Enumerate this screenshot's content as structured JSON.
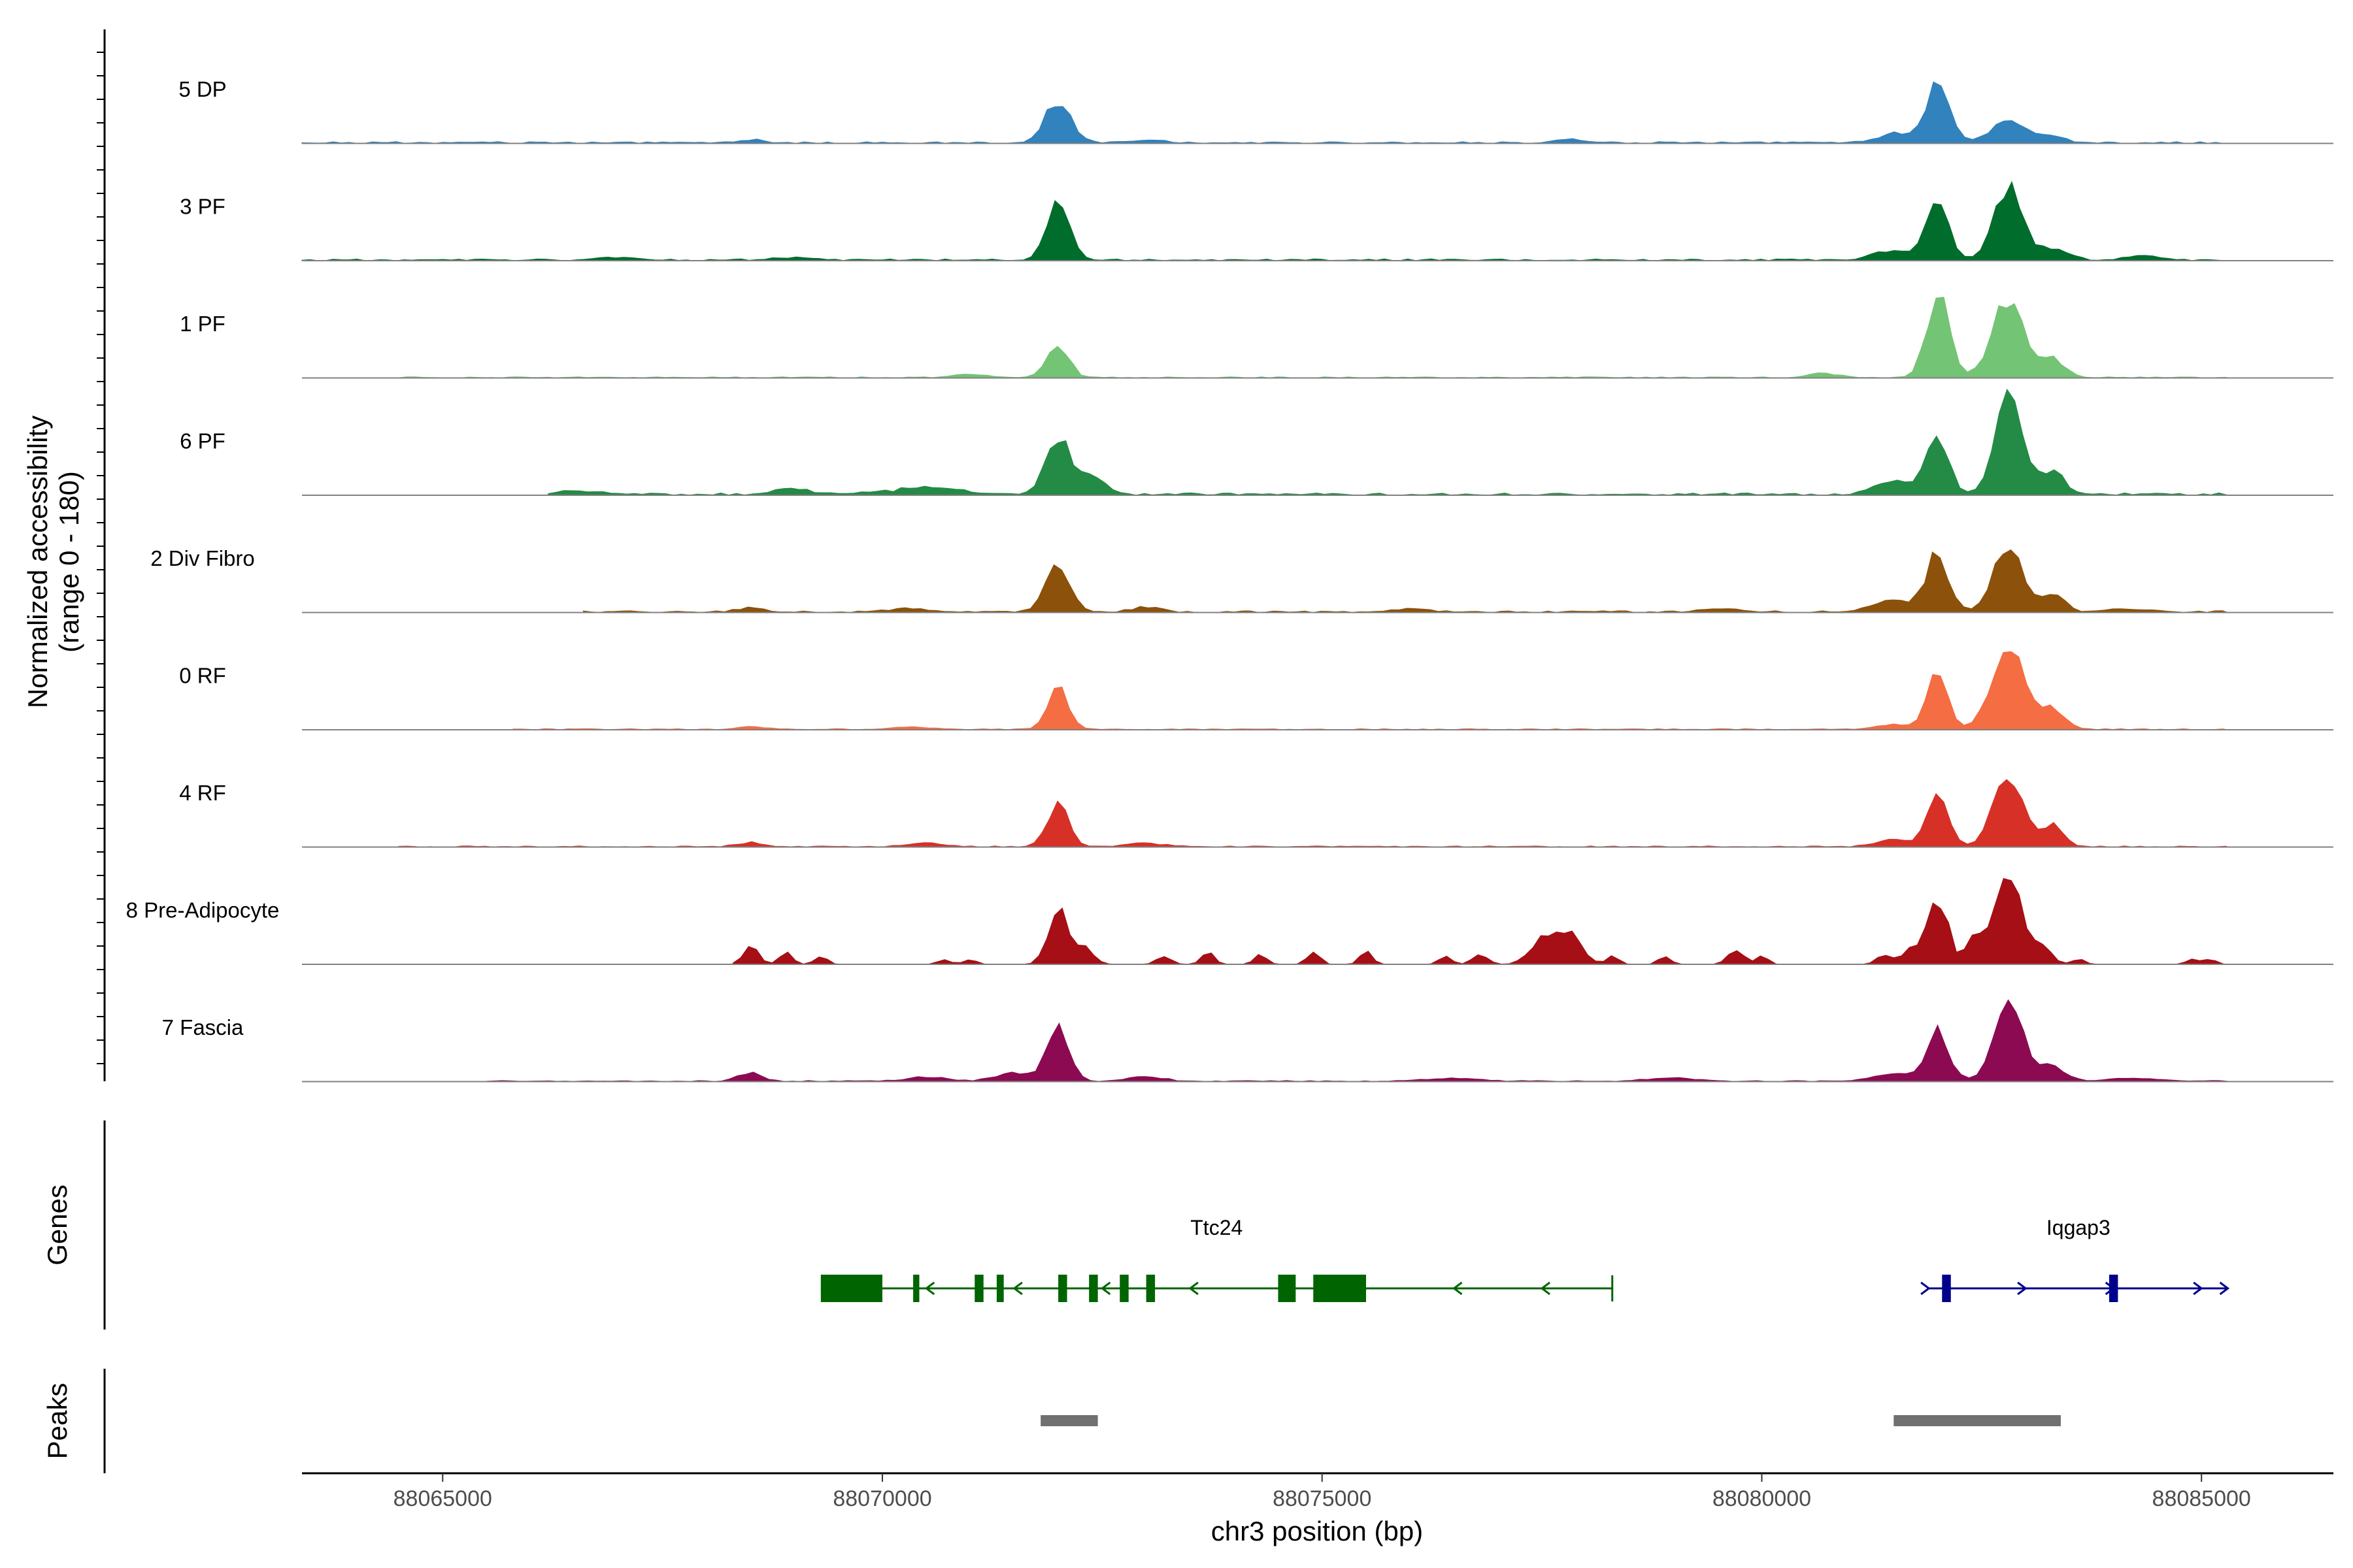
{
  "chart_data": {
    "type": "area",
    "ylabel": "Normalized accessibility\n(range 0 - 180)",
    "ylim": [
      0,
      180
    ],
    "xlabel": "chr3 position (bp)",
    "xlim": [
      88063400,
      88086500
    ],
    "x_ticks": [
      88065000,
      88070000,
      88075000,
      88080000,
      88085000
    ],
    "x_tick_labels": [
      "88065000",
      "88070000",
      "88075000",
      "88080000",
      "88085000"
    ],
    "track_titles": [
      "Genes",
      "Peaks"
    ],
    "series": [
      {
        "name": "5 DP",
        "color": "#3182bd",
        "peaks": [
          [
            88072000,
            85,
            200
          ],
          [
            88068500,
            6,
            150
          ],
          [
            88073000,
            5,
            250
          ],
          [
            88077800,
            8,
            180
          ],
          [
            88082000,
            110,
            200
          ],
          [
            88081500,
            18,
            250
          ],
          [
            88082800,
            38,
            300
          ],
          [
            88083300,
            12,
            200
          ]
        ],
        "baseline": 3,
        "start": 88063400,
        "end": 88085300
      },
      {
        "name": "3 PF",
        "color": "#006d2c",
        "peaks": [
          [
            88072000,
            120,
            180
          ],
          [
            88067000,
            6,
            300
          ],
          [
            88069000,
            5,
            300
          ],
          [
            88082000,
            110,
            180
          ],
          [
            88082800,
            140,
            220
          ],
          [
            88081500,
            20,
            300
          ],
          [
            88083300,
            22,
            250
          ],
          [
            88084300,
            8,
            250
          ]
        ],
        "baseline": 3,
        "start": 88063400,
        "end": 88085300
      },
      {
        "name": "1 PF",
        "color": "#74c476",
        "peaks": [
          [
            88072000,
            65,
            170
          ],
          [
            88082000,
            160,
            180
          ],
          [
            88082800,
            150,
            250
          ],
          [
            88083300,
            35,
            200
          ],
          [
            88071000,
            6,
            300
          ],
          [
            88080700,
            8,
            250
          ]
        ],
        "baseline": 2,
        "start": 88064500,
        "end": 88085300
      },
      {
        "name": "6 PF",
        "color": "#238b45",
        "peaks": [
          [
            88072000,
            110,
            200
          ],
          [
            88072400,
            35,
            200
          ],
          [
            88070500,
            12,
            600
          ],
          [
            88082000,
            110,
            180
          ],
          [
            88082800,
            180,
            220
          ],
          [
            88081500,
            25,
            300
          ],
          [
            88083300,
            45,
            200
          ],
          [
            88069000,
            10,
            300
          ],
          [
            88066500,
            6,
            400
          ]
        ],
        "baseline": 4,
        "start": 88066200,
        "end": 88085300
      },
      {
        "name": "2 Div Fibro",
        "color": "#8c510a",
        "peaks": [
          [
            88072000,
            95,
            190
          ],
          [
            88073000,
            10,
            200
          ],
          [
            88070300,
            6,
            300
          ],
          [
            88068500,
            8,
            200
          ],
          [
            88076000,
            6,
            300
          ],
          [
            88082000,
            110,
            180
          ],
          [
            88082800,
            130,
            220
          ],
          [
            88081500,
            25,
            300
          ],
          [
            88083300,
            35,
            200
          ],
          [
            88079500,
            6,
            300
          ],
          [
            88084200,
            6,
            300
          ]
        ],
        "baseline": 3,
        "start": 88066600,
        "end": 88085300
      },
      {
        "name": "0 RF",
        "color": "#f46d43",
        "peaks": [
          [
            88072000,
            85,
            160
          ],
          [
            88082000,
            110,
            170
          ],
          [
            88082800,
            170,
            250
          ],
          [
            88083300,
            40,
            200
          ],
          [
            88081500,
            10,
            250
          ],
          [
            88068500,
            6,
            200
          ],
          [
            88070300,
            5,
            300
          ]
        ],
        "baseline": 2,
        "start": 88065800,
        "end": 88085300
      },
      {
        "name": "4 RF",
        "color": "#d73027",
        "peaks": [
          [
            88072000,
            85,
            170
          ],
          [
            88082000,
            95,
            170
          ],
          [
            88082800,
            145,
            230
          ],
          [
            88083300,
            40,
            180
          ],
          [
            88081500,
            15,
            250
          ],
          [
            88068500,
            8,
            200
          ],
          [
            88070500,
            6,
            300
          ],
          [
            88073000,
            6,
            300
          ]
        ],
        "baseline": 2,
        "start": 88064500,
        "end": 88085300
      },
      {
        "name": "8 Pre-Adipocyte",
        "color": "#a50f15",
        "peaks": [
          [
            88068500,
            35,
            120
          ],
          [
            88068900,
            25,
            100
          ],
          [
            88069300,
            15,
            100
          ],
          [
            88070700,
            10,
            100
          ],
          [
            88071000,
            10,
            100
          ],
          [
            88072000,
            110,
            160
          ],
          [
            88072300,
            30,
            150
          ],
          [
            88073200,
            15,
            120
          ],
          [
            88073700,
            25,
            100
          ],
          [
            88074300,
            20,
            100
          ],
          [
            88074900,
            25,
            100
          ],
          [
            88075500,
            25,
            100
          ],
          [
            88076400,
            15,
            100
          ],
          [
            88076800,
            20,
            120
          ],
          [
            88077500,
            45,
            200
          ],
          [
            88077800,
            60,
            200
          ],
          [
            88078300,
            15,
            100
          ],
          [
            88078900,
            15,
            100
          ],
          [
            88079700,
            30,
            120
          ],
          [
            88080000,
            15,
            100
          ],
          [
            88081400,
            20,
            120
          ],
          [
            88081700,
            35,
            120
          ],
          [
            88082000,
            130,
            160
          ],
          [
            88082400,
            55,
            120
          ],
          [
            88082800,
            180,
            220
          ],
          [
            88083200,
            30,
            150
          ],
          [
            88083600,
            10,
            100
          ],
          [
            88084900,
            10,
            100
          ],
          [
            88085100,
            10,
            100
          ]
        ],
        "baseline": 0,
        "start": 88068300,
        "end": 88085300
      },
      {
        "name": "7 Fascia",
        "color": "#8c0a52",
        "peaks": [
          [
            88072000,
            105,
            180
          ],
          [
            88071500,
            15,
            300
          ],
          [
            88068500,
            15,
            200
          ],
          [
            88070500,
            8,
            300
          ],
          [
            88073000,
            8,
            300
          ],
          [
            88082000,
            95,
            180
          ],
          [
            88082800,
            160,
            230
          ],
          [
            88083300,
            30,
            200
          ],
          [
            88081500,
            15,
            300
          ],
          [
            88076500,
            6,
            400
          ],
          [
            88079000,
            6,
            400
          ],
          [
            88084200,
            6,
            400
          ]
        ],
        "baseline": 2,
        "start": 88065500,
        "end": 88085300
      }
    ],
    "genes": [
      {
        "name": "Ttc24",
        "strand": "-",
        "color": "#006400",
        "start": 88069300,
        "end": 88078300,
        "exons": [
          [
            88069300,
            88070000
          ],
          [
            88070350,
            88070420
          ],
          [
            88071050,
            88071150
          ],
          [
            88071300,
            88071380
          ],
          [
            88072000,
            88072100
          ],
          [
            88072350,
            88072450
          ],
          [
            88072700,
            88072800
          ],
          [
            88073000,
            88073100
          ],
          [
            88074500,
            88074700
          ],
          [
            88074900,
            88075500
          ]
        ],
        "arrows": [
          88070500,
          88071500,
          88072500,
          88073500,
          88076500,
          88077500
        ]
      },
      {
        "name": "Iqgap3",
        "strand": "+",
        "color": "#00008b",
        "start": 88081900,
        "end": 88085300,
        "exons": [
          [
            88082050,
            88082150
          ],
          [
            88083950,
            88084050
          ]
        ],
        "arrows": [
          88081900,
          88083000,
          88084000,
          88085000,
          88085300
        ]
      }
    ],
    "peaks_track": [
      [
        88071800,
        88072450
      ],
      [
        88081500,
        88083400
      ]
    ],
    "peaks_color": "#707070"
  }
}
